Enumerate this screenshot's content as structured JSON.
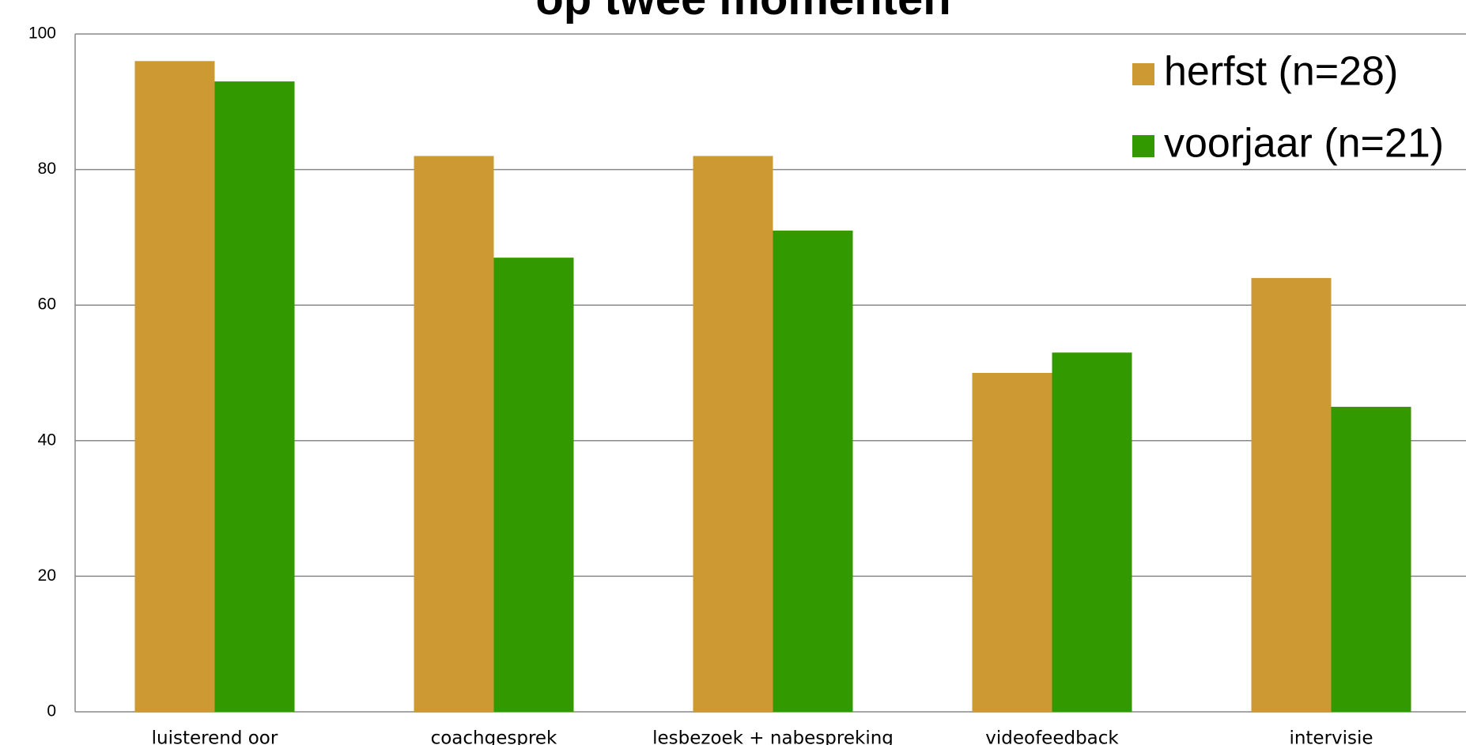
{
  "chart_data": {
    "type": "bar",
    "title": "op twee momenten",
    "categories": [
      "luisterend oor",
      "coachgesprek",
      "lesbezoek + nabespreking",
      "videofeedback",
      "intervisie"
    ],
    "series": [
      {
        "name": "herfst (n=28)",
        "color": "#cc9933",
        "values": [
          96,
          82,
          82,
          50,
          64
        ]
      },
      {
        "name": "voorjaar (n=21)",
        "color": "#339900",
        "values": [
          93,
          67,
          71,
          53,
          45
        ]
      }
    ],
    "ylim": [
      0,
      100
    ],
    "yticks": [
      0,
      20,
      40,
      60,
      80,
      100
    ],
    "grid": true,
    "legend": "top-right"
  }
}
